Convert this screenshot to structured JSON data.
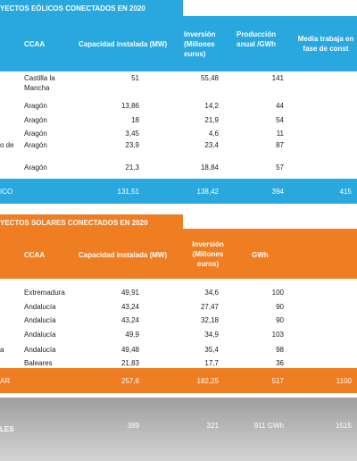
{
  "wind": {
    "tab": "YECTOS EÓLICOS CONECTADOS EN 2020",
    "headers": [
      "CCAA",
      "Capacidad instalada (MW)",
      "Inversión (Millones euros)",
      "Producción anual /GWh",
      "Media trabaja en fase de const"
    ],
    "rows": [
      {
        "name": "",
        "ccaa": "Castilla la Mancha",
        "capacity": "51",
        "investment": "55,48",
        "production": "141"
      },
      {
        "name": "",
        "ccaa": "Aragón",
        "capacity": "13,86",
        "investment": "14,2",
        "production": "44"
      },
      {
        "name": "",
        "ccaa": "Aragón",
        "capacity": "18",
        "investment": "21,9",
        "production": "54"
      },
      {
        "name": "",
        "ccaa": "Aragón",
        "capacity": "3,45",
        "investment": "4,6",
        "production": "11"
      },
      {
        "name": "o de",
        "ccaa": "Aragón",
        "capacity": "23,9",
        "investment": "23,4",
        "production": "87"
      },
      {
        "name": "",
        "ccaa": "Aragón",
        "capacity": "21,3",
        "investment": "18,84",
        "production": "57"
      }
    ],
    "total": {
      "label": "ICO",
      "capacity": "131,51",
      "investment": "138,42",
      "production": "394",
      "workers": "415"
    }
  },
  "solar": {
    "tab": "YECTOS SOLARES CONECTADOS EN 2020",
    "headers": [
      "CCAA",
      "Capacidad instalada (MW)",
      "Inversión (Millones euros)",
      "GWh"
    ],
    "rows": [
      {
        "name": "",
        "ccaa": "Extremadura",
        "capacity": "49,91",
        "investment": "34,6",
        "production": "100"
      },
      {
        "name": "",
        "ccaa": "Andalucía",
        "capacity": "43,24",
        "investment": "27,47",
        "production": "90"
      },
      {
        "name": "",
        "ccaa": "Andalucía",
        "capacity": "43,24",
        "investment": "32,18",
        "production": "90"
      },
      {
        "name": "",
        "ccaa": "Andalucía",
        "capacity": "49,9",
        "investment": "34,9",
        "production": "103"
      },
      {
        "name": "a",
        "ccaa": "Andalucía",
        "capacity": "49,48",
        "investment": "35,4",
        "production": "98"
      },
      {
        "name": "",
        "ccaa": "Baleares",
        "capacity": "21,83",
        "investment": "17,7",
        "production": "36"
      }
    ],
    "total": {
      "label": "AR",
      "capacity": "257,6",
      "investment": "182,25",
      "production": "517",
      "workers": "1100"
    }
  },
  "grand_total": {
    "label": "LES",
    "capacity": "389",
    "investment": "321",
    "production": "911 GWh",
    "workers": "1515"
  }
}
